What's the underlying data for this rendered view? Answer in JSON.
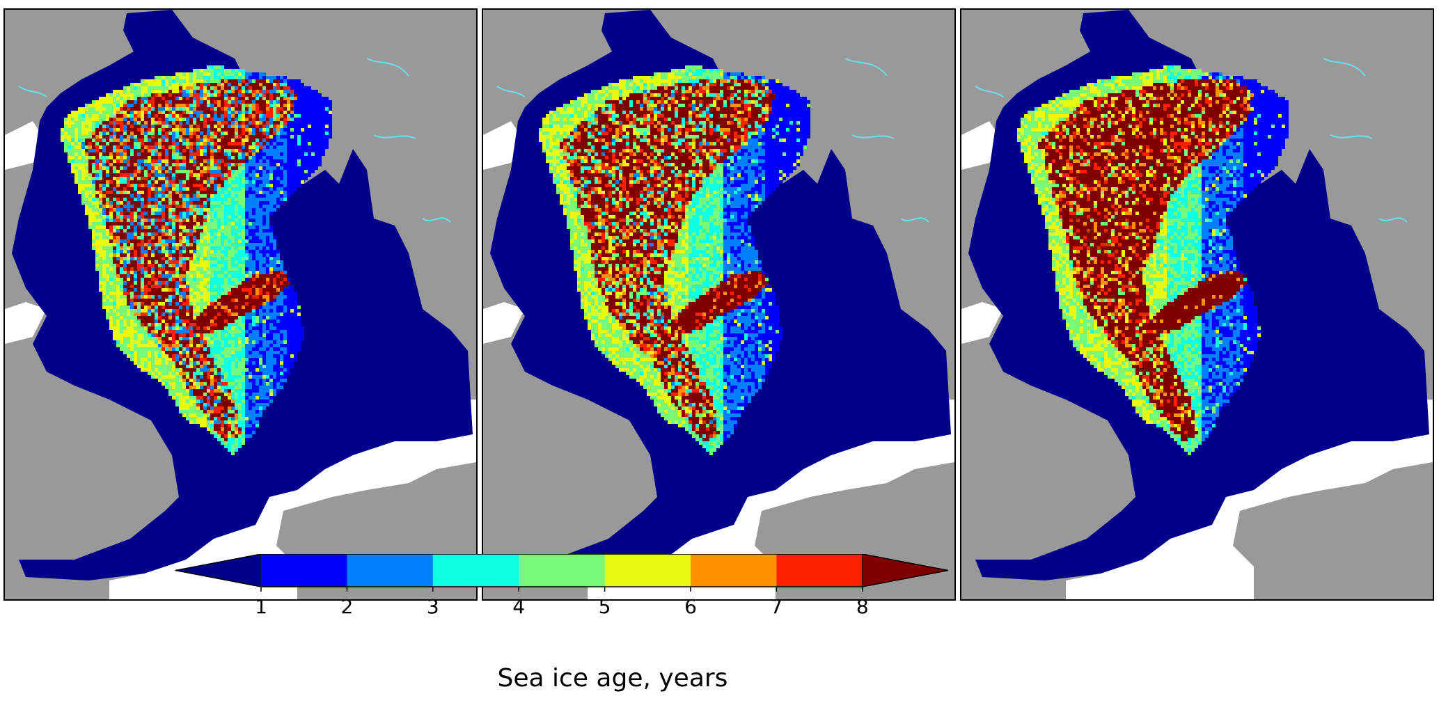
{
  "maps": [
    {
      "id": "panel-1",
      "seed": 11,
      "old_ice_bias": 0.0
    },
    {
      "id": "panel-2",
      "seed": 23,
      "old_ice_bias": 0.12
    },
    {
      "id": "panel-3",
      "seed": 37,
      "old_ice_bias": 0.25
    }
  ],
  "colorbar": {
    "label": "Sea ice age, years",
    "ticks": [
      "1",
      "2",
      "3",
      "4",
      "5",
      "6",
      "7",
      "8"
    ],
    "under_color": "#00008b",
    "over_color": "#800000",
    "bin_colors": [
      "#0000ff",
      "#0080ff",
      "#10ffe0",
      "#78f878",
      "#e8f810",
      "#ff9000",
      "#ff2000"
    ],
    "extend": "both"
  },
  "colors": {
    "land": "#999999",
    "ocean_open": "#ffffff",
    "ice_edge": "#00008b",
    "river": "#66e0ee"
  }
}
